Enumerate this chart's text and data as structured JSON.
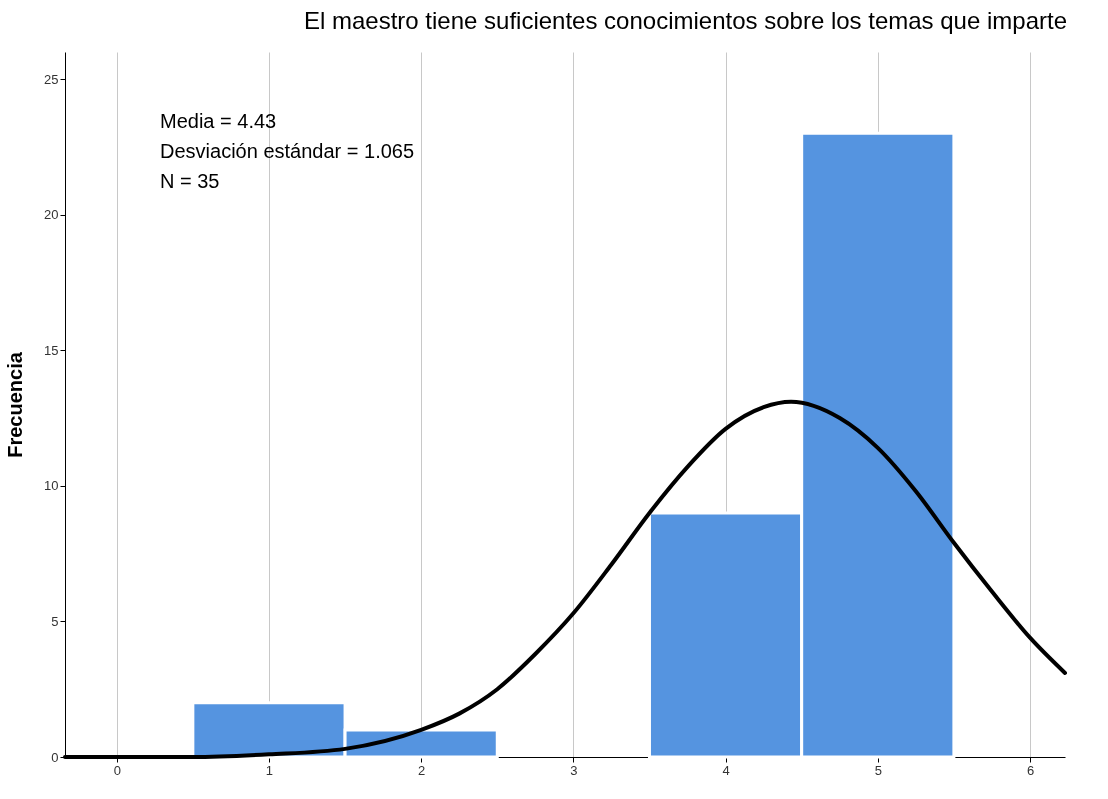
{
  "chart_data": {
    "type": "histogram",
    "title": "El maestro tiene suficientes conocimientos sobre los temas que imparte",
    "ylabel": "Frecuencia",
    "bins": [
      0.5,
      1.5,
      2.5,
      3.5,
      4.5,
      5.5
    ],
    "values": [
      2,
      1,
      0,
      9,
      23
    ],
    "color": "#5594e0",
    "series": [
      {
        "type": "line",
        "color": "#000000",
        "x": [
          -0.34,
          0,
          0.5,
          1,
          1.5,
          2,
          2.25,
          2.5,
          2.75,
          3,
          3.25,
          3.5,
          3.75,
          4,
          4.25,
          4.43,
          4.75,
          5,
          5.25,
          5.5,
          5.75,
          6,
          6.23
        ],
        "values": [
          0,
          0,
          0,
          0.1,
          0.3,
          1,
          1.6,
          2.5,
          3.8,
          5.3,
          7.1,
          9,
          10.7,
          12.1,
          12.9,
          13.1,
          12.5,
          11.4,
          9.8,
          7.9,
          6.1,
          4.4,
          3.1
        ]
      }
    ],
    "annotations": [
      "Media = 4.43",
      "Desviación estándar = 1.065",
      "N = 35"
    ],
    "xlim": [
      -0.34,
      6.23
    ],
    "xticks": [
      0,
      1,
      2,
      3,
      4,
      5,
      6
    ],
    "ylim": [
      0,
      26
    ],
    "yticks": [
      0,
      5,
      10,
      15,
      20,
      25
    ],
    "grid": "x"
  }
}
